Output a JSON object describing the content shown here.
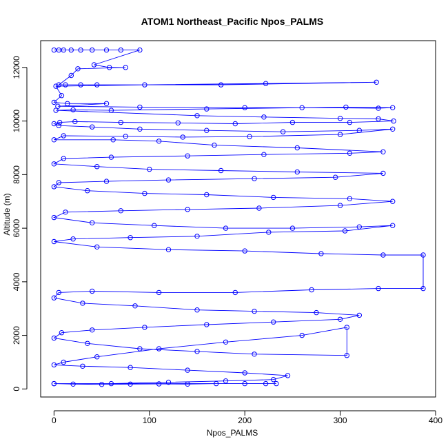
{
  "chart_data": {
    "type": "line",
    "title": "ATOM1 Northeast_Pacific Npos_PALMS",
    "xlabel": "Npos_PALMS",
    "ylabel": "Altitude (m)",
    "xlim": [
      -14,
      400
    ],
    "ylim": [
      -300,
      13000
    ],
    "xticks": [
      0,
      100,
      200,
      300,
      400
    ],
    "yticks": [
      0,
      2000,
      4000,
      6000,
      8000,
      10000,
      12000
    ],
    "series_color": "#0000ff",
    "marker": "open-circle",
    "series": [
      {
        "points": [
          [
            0,
            12650
          ],
          [
            5,
            12650
          ],
          [
            10,
            12650
          ],
          [
            18,
            12650
          ],
          [
            28,
            12650
          ],
          [
            40,
            12650
          ],
          [
            55,
            12650
          ],
          [
            70,
            12650
          ],
          [
            90,
            12650
          ],
          [
            42,
            12100
          ],
          [
            58,
            12000
          ],
          [
            75,
            12000
          ],
          [
            25,
            11950
          ],
          [
            18,
            11700
          ],
          [
            5,
            11350
          ],
          [
            12,
            11350
          ],
          [
            28,
            11350
          ],
          [
            45,
            11350
          ],
          [
            175,
            11350
          ],
          [
            338,
            11450
          ],
          [
            222,
            11400
          ],
          [
            95,
            11350
          ],
          [
            2,
            11300
          ],
          [
            8,
            10950
          ],
          [
            0,
            10700
          ],
          [
            14,
            10650
          ],
          [
            55,
            10650
          ],
          [
            4,
            10550
          ],
          [
            90,
            10520
          ],
          [
            200,
            10500
          ],
          [
            260,
            10500
          ],
          [
            340,
            10480
          ],
          [
            355,
            10500
          ],
          [
            306,
            10520
          ],
          [
            160,
            10450
          ],
          [
            60,
            10400
          ],
          [
            20,
            10420
          ],
          [
            2,
            10400
          ],
          [
            150,
            10200
          ],
          [
            220,
            10150
          ],
          [
            300,
            10100
          ],
          [
            340,
            10080
          ],
          [
            356,
            10000
          ],
          [
            310,
            9950
          ],
          [
            250,
            9950
          ],
          [
            190,
            9900
          ],
          [
            130,
            9930
          ],
          [
            70,
            9950
          ],
          [
            22,
            9980
          ],
          [
            6,
            9950
          ],
          [
            0,
            9900
          ],
          [
            5,
            9830
          ],
          [
            40,
            9780
          ],
          [
            90,
            9700
          ],
          [
            160,
            9650
          ],
          [
            240,
            9600
          ],
          [
            320,
            9650
          ],
          [
            355,
            9700
          ],
          [
            300,
            9500
          ],
          [
            205,
            9420
          ],
          [
            135,
            9400
          ],
          [
            75,
            9430
          ],
          [
            10,
            9450
          ],
          [
            0,
            9300
          ],
          [
            62,
            9300
          ],
          [
            110,
            9250
          ],
          [
            168,
            9100
          ],
          [
            255,
            9000
          ],
          [
            345,
            8850
          ],
          [
            310,
            8800
          ],
          [
            220,
            8750
          ],
          [
            140,
            8700
          ],
          [
            60,
            8650
          ],
          [
            10,
            8600
          ],
          [
            0,
            8400
          ],
          [
            45,
            8300
          ],
          [
            100,
            8200
          ],
          [
            175,
            8150
          ],
          [
            255,
            8100
          ],
          [
            345,
            8050
          ],
          [
            295,
            7900
          ],
          [
            210,
            7850
          ],
          [
            120,
            7800
          ],
          [
            55,
            7750
          ],
          [
            5,
            7700
          ],
          [
            0,
            7550
          ],
          [
            35,
            7400
          ],
          [
            95,
            7300
          ],
          [
            160,
            7250
          ],
          [
            230,
            7150
          ],
          [
            310,
            7100
          ],
          [
            355,
            7000
          ],
          [
            300,
            6850
          ],
          [
            215,
            6750
          ],
          [
            140,
            6700
          ],
          [
            70,
            6650
          ],
          [
            12,
            6600
          ],
          [
            0,
            6400
          ],
          [
            40,
            6200
          ],
          [
            105,
            6100
          ],
          [
            180,
            6000
          ],
          [
            250,
            6000
          ],
          [
            320,
            6050
          ],
          [
            355,
            6100
          ],
          [
            305,
            5900
          ],
          [
            225,
            5850
          ],
          [
            150,
            5700
          ],
          [
            80,
            5650
          ],
          [
            20,
            5600
          ],
          [
            0,
            5500
          ],
          [
            45,
            5300
          ],
          [
            120,
            5200
          ],
          [
            200,
            5150
          ],
          [
            280,
            5050
          ],
          [
            345,
            5000
          ],
          [
            387,
            5000
          ],
          [
            387,
            3750
          ],
          [
            340,
            3750
          ],
          [
            270,
            3700
          ],
          [
            190,
            3600
          ],
          [
            110,
            3600
          ],
          [
            40,
            3650
          ],
          [
            5,
            3600
          ],
          [
            0,
            3400
          ],
          [
            30,
            3200
          ],
          [
            85,
            3100
          ],
          [
            150,
            2950
          ],
          [
            210,
            2900
          ],
          [
            275,
            2850
          ],
          [
            320,
            2750
          ],
          [
            300,
            2600
          ],
          [
            230,
            2500
          ],
          [
            160,
            2400
          ],
          [
            95,
            2300
          ],
          [
            40,
            2200
          ],
          [
            8,
            2100
          ],
          [
            0,
            1900
          ],
          [
            35,
            1700
          ],
          [
            90,
            1500
          ],
          [
            150,
            1400
          ],
          [
            210,
            1300
          ],
          [
            307,
            1250
          ],
          [
            307,
            2300
          ],
          [
            260,
            2000
          ],
          [
            180,
            1750
          ],
          [
            110,
            1500
          ],
          [
            45,
            1200
          ],
          [
            10,
            1000
          ],
          [
            0,
            900
          ],
          [
            30,
            850
          ],
          [
            80,
            800
          ],
          [
            140,
            700
          ],
          [
            200,
            600
          ],
          [
            245,
            500
          ],
          [
            230,
            350
          ],
          [
            180,
            300
          ],
          [
            120,
            250
          ],
          [
            60,
            200
          ],
          [
            0,
            200
          ],
          [
            20,
            180
          ],
          [
            50,
            170
          ],
          [
            80,
            180
          ],
          [
            110,
            190
          ],
          [
            140,
            180
          ],
          [
            170,
            200
          ],
          [
            200,
            200
          ],
          [
            233,
            200
          ],
          [
            222,
            200
          ],
          [
            0,
            200
          ]
        ]
      }
    ]
  }
}
